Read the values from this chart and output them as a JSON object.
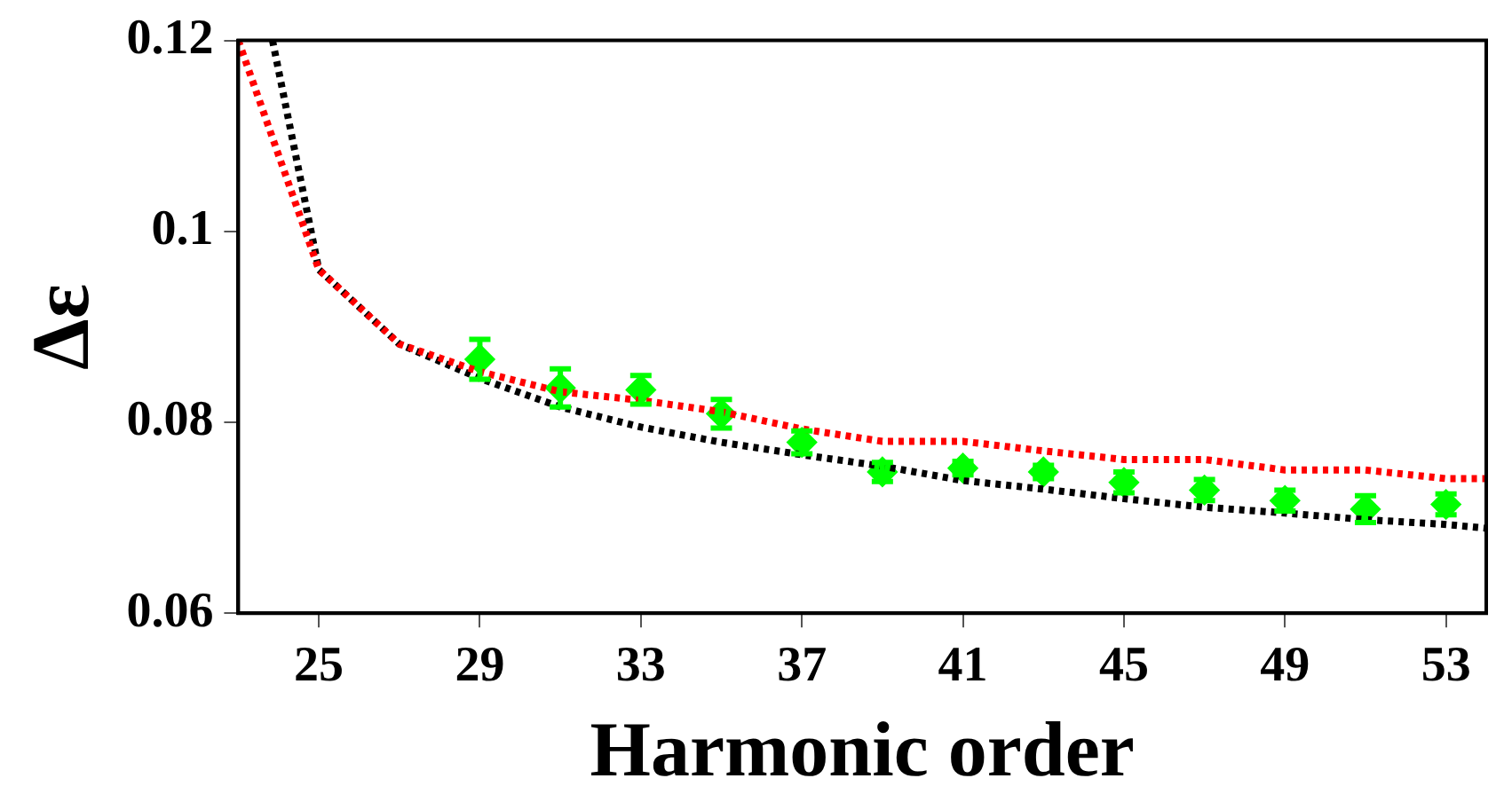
{
  "chart_data": {
    "type": "line",
    "xlabel": "Harmonic order",
    "ylabel": "Δε",
    "xlim": [
      23,
      54
    ],
    "xticks": [
      25,
      29,
      33,
      37,
      41,
      45,
      49,
      53
    ],
    "ylim": [
      0.06,
      0.12
    ],
    "yticks": [
      0.06,
      0.08,
      0.1,
      0.12
    ],
    "grid": false,
    "legend": false,
    "series": [
      {
        "type": "line",
        "color": "#ff0000",
        "line_style": "dotted",
        "marker": "none",
        "x": [
          23,
          25,
          27,
          29,
          31,
          33,
          35,
          37,
          39,
          41,
          43,
          45,
          47,
          49,
          51,
          53,
          54
        ],
        "values": [
          0.12,
          0.096,
          0.0882,
          0.0853,
          0.0832,
          0.0823,
          0.0811,
          0.0793,
          0.078,
          0.078,
          0.077,
          0.0761,
          0.0761,
          0.075,
          0.075,
          0.0741,
          0.0741
        ]
      },
      {
        "type": "line",
        "color": "#000000",
        "line_style": "dotted",
        "marker": "none",
        "x": [
          23.85,
          25,
          27,
          29,
          31,
          33,
          35,
          37,
          39,
          41,
          43,
          45,
          47,
          49,
          51,
          53,
          54
        ],
        "values": [
          0.12,
          0.096,
          0.0882,
          0.0846,
          0.0816,
          0.0795,
          0.0779,
          0.0766,
          0.0754,
          0.0739,
          0.073,
          0.072,
          0.0711,
          0.0705,
          0.0698,
          0.0693,
          0.0689
        ]
      },
      {
        "type": "scatter",
        "color": "#00ff00",
        "marker": "diamond",
        "x": [
          29,
          31,
          33,
          35,
          37,
          39,
          41,
          43,
          45,
          47,
          49,
          51,
          53
        ],
        "values": [
          0.0866,
          0.0836,
          0.0834,
          0.0809,
          0.0779,
          0.0748,
          0.0752,
          0.0748,
          0.0737,
          0.0729,
          0.0718,
          0.0709,
          0.0714
        ],
        "errors": [
          0.0021,
          0.002,
          0.0015,
          0.0015,
          0.0012,
          0.001,
          0.0007,
          0.0007,
          0.0011,
          0.0011,
          0.0011,
          0.0014,
          0.0011
        ]
      }
    ]
  }
}
